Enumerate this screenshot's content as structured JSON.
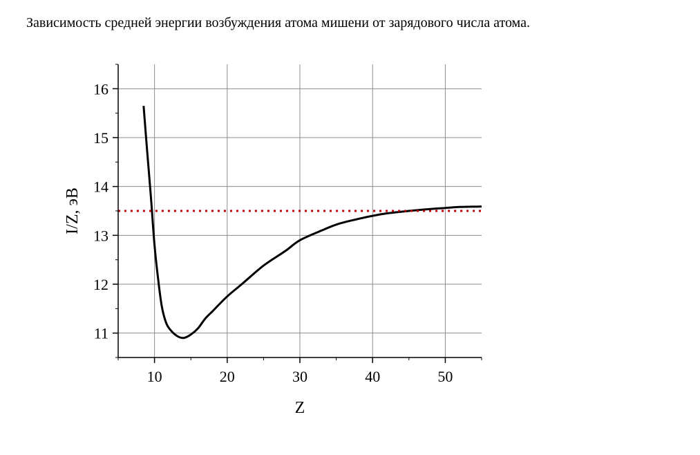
{
  "caption": "Зависимость средней энергии возбуждения атома мишени от зарядового числа атома.",
  "chart_data": {
    "type": "line",
    "title": "",
    "xlabel": "Z",
    "ylabel": "I/Z, эВ",
    "xlim": [
      5,
      55
    ],
    "ylim": [
      10.5,
      16.5
    ],
    "xticks": [
      10,
      20,
      30,
      40,
      50
    ],
    "yticks": [
      11,
      12,
      13,
      14,
      15,
      16
    ],
    "grid": true,
    "legend": "none",
    "series": [
      {
        "color": "#000000",
        "style": "solid",
        "x": [
          8.5,
          9,
          9.5,
          10,
          10.5,
          11,
          11.5,
          12,
          13,
          14,
          15,
          16,
          17,
          18,
          20,
          22,
          25,
          28,
          30,
          33,
          35,
          37,
          40,
          42,
          45,
          48,
          50,
          52,
          55
        ],
        "y": [
          15.65,
          14.7,
          13.8,
          12.8,
          12.1,
          11.55,
          11.25,
          11.1,
          10.95,
          10.9,
          10.97,
          11.1,
          11.3,
          11.45,
          11.75,
          12.0,
          12.38,
          12.68,
          12.9,
          13.1,
          13.22,
          13.3,
          13.4,
          13.45,
          13.5,
          13.54,
          13.56,
          13.58,
          13.59
        ]
      },
      {
        "color": "#c00000",
        "style": "dotted",
        "x": [
          5,
          55
        ],
        "y": [
          13.5,
          13.5
        ]
      }
    ]
  }
}
